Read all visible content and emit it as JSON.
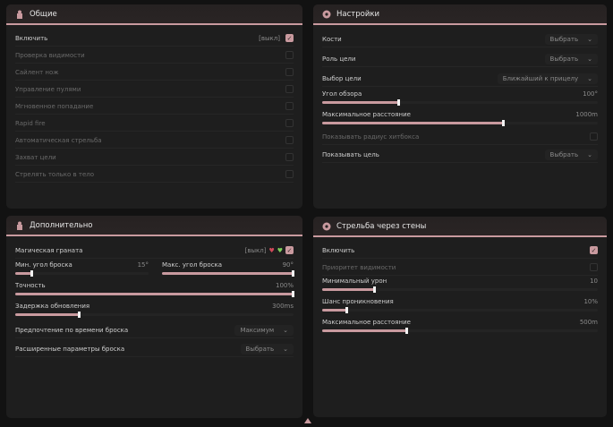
{
  "accent": "#c99a9f",
  "general": {
    "title": "Общие",
    "icon": "agent-icon",
    "enable": {
      "label": "Включить",
      "key": "[выкл]",
      "checked": true
    },
    "items": [
      {
        "label": "Проверка видимости",
        "checked": false
      },
      {
        "label": "Сайлент нож",
        "checked": false
      },
      {
        "label": "Управление пулями",
        "checked": false
      },
      {
        "label": "Мгновенное попадание",
        "checked": false
      },
      {
        "label": "Rapid fire",
        "checked": false
      },
      {
        "label": "Автоматическая стрельба",
        "checked": false
      },
      {
        "label": "Захват цели",
        "checked": false
      },
      {
        "label": "Стрелять только в тело",
        "checked": false
      }
    ]
  },
  "settings": {
    "title": "Настройки",
    "icon": "flower-icon",
    "bones": {
      "label": "Кости",
      "value": "Выбрать"
    },
    "target_role": {
      "label": "Роль цели",
      "value": "Выбрать"
    },
    "target_select": {
      "label": "Выбор цели",
      "value": "Ближайший к прицелу"
    },
    "fov": {
      "label": "Угол обзора",
      "value": "100°",
      "fraction": 0.28
    },
    "max_dist": {
      "label": "Максимальное расстояние",
      "value": "1000m",
      "fraction": 0.66
    },
    "show_hitbox": {
      "label": "Показывать радиус хитбокса",
      "checked": false
    },
    "show_target": {
      "label": "Показывать цель",
      "value": "Выбрать"
    }
  },
  "extra": {
    "title": "Дополнительно",
    "icon": "agent-icon",
    "grenade": {
      "label": "Магическая граната",
      "key": "[выкл]",
      "checked": true
    },
    "min_angle": {
      "label": "Мин. угол броска",
      "value": "15°",
      "fraction": 0.13
    },
    "max_angle": {
      "label": "Макс. угол броска",
      "value": "90°",
      "fraction": 1.0
    },
    "accuracy": {
      "label": "Точность",
      "value": "100%",
      "fraction": 1.0
    },
    "delay": {
      "label": "Задержка обновления",
      "value": "300ms",
      "fraction": 0.23
    },
    "pref": {
      "label": "Предпочтение по времени броска",
      "value": "Максимум"
    },
    "adv": {
      "label": "Расширенные параметры броска",
      "value": "Выбрать"
    }
  },
  "wall": {
    "title": "Стрельба через стены",
    "icon": "flower-icon",
    "enable": {
      "label": "Включить",
      "checked": true
    },
    "priority": {
      "label": "Приоритет видимости",
      "checked": false
    },
    "min_dmg": {
      "label": "Минимальный урон",
      "value": "10",
      "fraction": 0.19
    },
    "pen": {
      "label": "Шанс проникновения",
      "value": "10%",
      "fraction": 0.09
    },
    "max_dist": {
      "label": "Максимальное расстояние",
      "value": "500m",
      "fraction": 0.31
    }
  }
}
